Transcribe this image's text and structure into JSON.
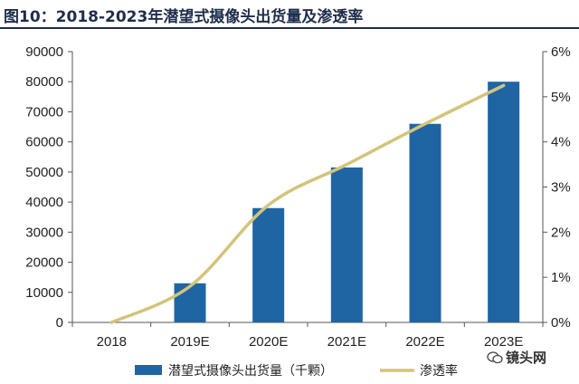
{
  "header": {
    "title": "图10：2018-2023年潜望式摄像头出货量及渗透率"
  },
  "watermark": {
    "text": "镜头网",
    "icon": "wechat-icon"
  },
  "chart_data": {
    "type": "bar",
    "title": "",
    "categories": [
      "2018",
      "2019E",
      "2020E",
      "2021E",
      "2022E",
      "2023E"
    ],
    "series": [
      {
        "name": "潜望式摄像头出货量（千颗）",
        "type": "bar",
        "axis": "left",
        "color": "#1f65a3",
        "values": [
          0,
          13000,
          38000,
          51500,
          66000,
          80000
        ]
      },
      {
        "name": "渗透率",
        "type": "line",
        "axis": "right",
        "color": "#d3c47a",
        "values": [
          0,
          0.8,
          2.6,
          3.5,
          4.4,
          5.25
        ]
      }
    ],
    "y_left": {
      "min": 0,
      "max": 90000,
      "ticks": [
        "0",
        "10000",
        "20000",
        "30000",
        "40000",
        "50000",
        "60000",
        "70000",
        "80000",
        "90000"
      ]
    },
    "y_right": {
      "min": 0,
      "max": 6,
      "ticks": [
        "0%",
        "1%",
        "2%",
        "3%",
        "4%",
        "5%",
        "6%"
      ]
    },
    "grid": false,
    "legend": "bottom"
  }
}
